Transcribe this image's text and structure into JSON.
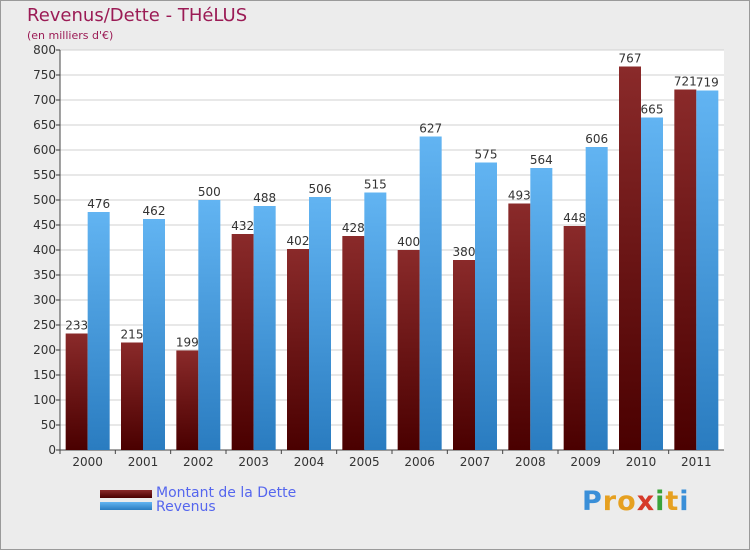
{
  "chart_data": {
    "type": "bar",
    "title": "Revenus/Dette - THéLUS",
    "subtitle": "(en milliers d'€)",
    "categories": [
      "2000",
      "2001",
      "2002",
      "2003",
      "2004",
      "2005",
      "2006",
      "2007",
      "2008",
      "2009",
      "2010",
      "2011"
    ],
    "series": [
      {
        "name": "Montant de la Dette",
        "values": [
          233,
          215,
          199,
          432,
          402,
          428,
          400,
          380,
          493,
          448,
          767,
          721
        ],
        "color": "#7a1a1a",
        "color_dark": "#4a0000"
      },
      {
        "name": "Revenus",
        "values": [
          476,
          462,
          500,
          488,
          506,
          515,
          627,
          575,
          564,
          606,
          665,
          719
        ],
        "color": "#5aaff0",
        "color_dark": "#2a7cc0"
      }
    ],
    "ylim": [
      0,
      800
    ],
    "yticks": [
      0,
      50,
      100,
      150,
      200,
      250,
      300,
      350,
      400,
      450,
      500,
      550,
      600,
      650,
      700,
      750,
      800
    ],
    "xlabel": "",
    "ylabel": "",
    "grid": true,
    "legend": "bottom-left"
  },
  "logo": {
    "letters": [
      "P",
      "r",
      "o",
      "x",
      "i",
      "t",
      "i"
    ],
    "colors": [
      "#3a8fd8",
      "#e6a020",
      "#e6a020",
      "#d63a2a",
      "#3aa33a",
      "#e6a020",
      "#3a8fd8"
    ]
  }
}
